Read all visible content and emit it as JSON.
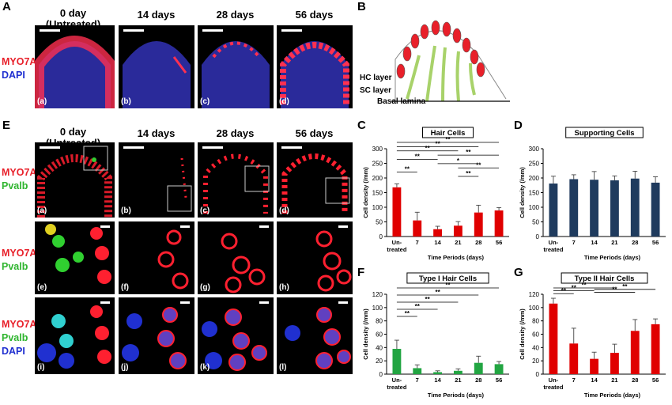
{
  "panel_labels": {
    "A": "A",
    "B": "B",
    "C": "C",
    "D": "D",
    "E": "E",
    "F": "F",
    "G": "G"
  },
  "column_titles": {
    "day0_line1": "0 day",
    "day0_line2": "(Untreated)",
    "d14": "14 days",
    "d28": "28 days",
    "d56": "56 days"
  },
  "row_labels": {
    "myo7a": "MYO7A",
    "dapi": "DAPI",
    "pvalb": "Pvalb"
  },
  "sublabels": {
    "A": [
      "(a)",
      "(b)",
      "(c)",
      "(d)"
    ],
    "E1": [
      "(a)",
      "(b)",
      "(c)",
      "(d)"
    ],
    "E2": [
      "(e)",
      "(f)",
      "(g)",
      "(h)"
    ],
    "E3": [
      "(i)",
      "(j)",
      "(k)",
      "(l)"
    ]
  },
  "diagram": {
    "hc_layer": "HC layer",
    "sc_layer": "SC layer",
    "basal_lamina": "Basal lamina"
  },
  "colors": {
    "red_bar": "#e00000",
    "navy_bar": "#1f3b5e",
    "green_bar": "#22a542",
    "hc_red": "#e8202a",
    "sc_green": "#a8d26a"
  },
  "chart_data": [
    {
      "id": "C",
      "type": "bar",
      "title": "Hair Cells",
      "xlabel": "Time Periods (days)",
      "ylabel": "Cell density (/mm)",
      "categories": [
        "Un-\ntreated",
        "7",
        "14",
        "21",
        "28",
        "56"
      ],
      "values": [
        168,
        55,
        25,
        37,
        82,
        89
      ],
      "errors": [
        12,
        28,
        10,
        14,
        25,
        10
      ],
      "ylim": [
        0,
        300
      ],
      "yticks": [
        0,
        50,
        100,
        150,
        200,
        250,
        300
      ],
      "color": "#e00000",
      "significance": [
        {
          "from": 0,
          "to": 1,
          "label": "**"
        },
        {
          "from": 0,
          "to": 2,
          "label": "**"
        },
        {
          "from": 0,
          "to": 3,
          "label": "**"
        },
        {
          "from": 0,
          "to": 4,
          "label": "**"
        },
        {
          "from": 0,
          "to": 5,
          "label": "**"
        },
        {
          "from": 2,
          "to": 4,
          "label": "*"
        },
        {
          "from": 2,
          "to": 5,
          "label": "**"
        },
        {
          "from": 3,
          "to": 5,
          "label": "**"
        },
        {
          "from": 3,
          "to": 4,
          "label": "**"
        }
      ]
    },
    {
      "id": "D",
      "type": "bar",
      "title": "Supporting Cells",
      "xlabel": "Time Periods (days)",
      "ylabel": "Cell density (/mm)",
      "categories": [
        "Un-\ntreated",
        "7",
        "14",
        "21",
        "28",
        "56"
      ],
      "values": [
        181,
        196,
        194,
        192,
        198,
        184
      ],
      "errors": [
        25,
        15,
        28,
        15,
        25,
        20
      ],
      "ylim": [
        0,
        300
      ],
      "yticks": [
        0,
        50,
        100,
        150,
        200,
        250,
        300
      ],
      "color": "#1f3b5e",
      "significance": []
    },
    {
      "id": "F",
      "type": "bar",
      "title": "Type I Hair Cells",
      "xlabel": "Time Periods (days)",
      "ylabel": "Cell density (/mm)",
      "categories": [
        "Un-\ntreated",
        "7",
        "14",
        "21",
        "28",
        "56"
      ],
      "values": [
        38,
        9,
        3,
        5,
        17,
        15
      ],
      "errors": [
        13,
        5,
        2,
        3,
        10,
        4
      ],
      "ylim": [
        0,
        120
      ],
      "yticks": [
        0,
        20,
        40,
        60,
        80,
        100,
        120
      ],
      "color": "#22a542",
      "significance": [
        {
          "from": 0,
          "to": 1,
          "label": "**"
        },
        {
          "from": 0,
          "to": 2,
          "label": "**"
        },
        {
          "from": 0,
          "to": 3,
          "label": "**"
        },
        {
          "from": 0,
          "to": 4,
          "label": "**"
        },
        {
          "from": 0,
          "to": 5,
          "label": "**"
        }
      ]
    },
    {
      "id": "G",
      "type": "bar",
      "title": "Type II Hair Cells",
      "xlabel": "Time Periods (days)",
      "ylabel": "Cell density (/mm)",
      "categories": [
        "Un-\ntreated",
        "7",
        "14",
        "21",
        "28",
        "56"
      ],
      "values": [
        106,
        46,
        23,
        32,
        65,
        75
      ],
      "errors": [
        8,
        23,
        10,
        13,
        17,
        8
      ],
      "ylim": [
        0,
        120
      ],
      "yticks": [
        0,
        20,
        40,
        60,
        80,
        100,
        120
      ],
      "color": "#e00000",
      "significance": [
        {
          "from": 0,
          "to": 1,
          "label": "**"
        },
        {
          "from": 0,
          "to": 2,
          "label": "**"
        },
        {
          "from": 0,
          "to": 3,
          "label": "**"
        },
        {
          "from": 2,
          "to": 4,
          "label": "**"
        },
        {
          "from": 2,
          "to": 5,
          "label": "**"
        }
      ]
    }
  ]
}
